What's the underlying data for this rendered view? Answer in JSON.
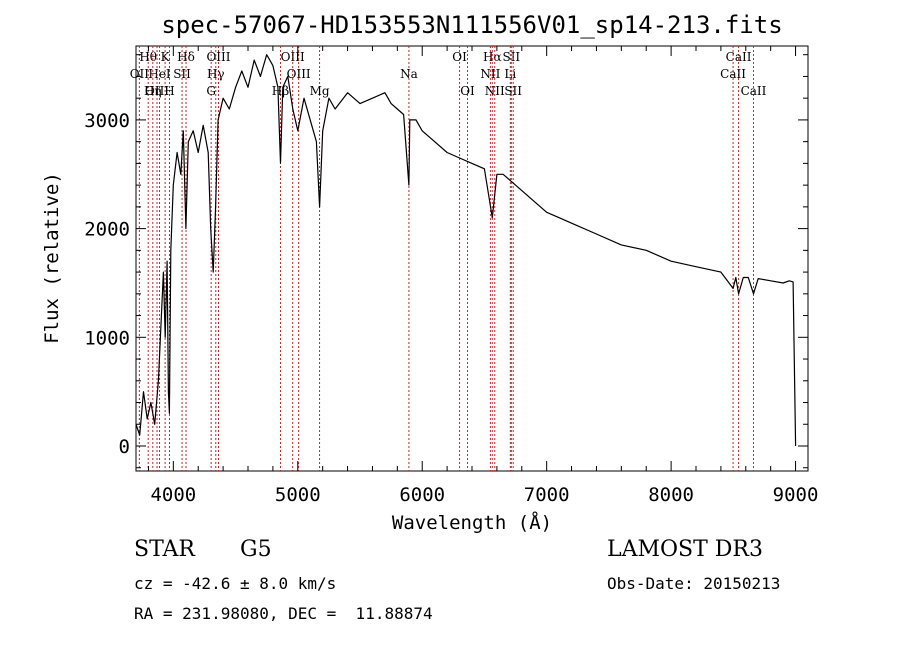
{
  "chart_data": {
    "type": "line",
    "title": "spec-57067-HD153553N111556V01_sp14-213.fits",
    "xlabel": "Wavelength (Å)",
    "ylabel": "Flux (relative)",
    "xlim": [
      3700,
      9100
    ],
    "ylim": [
      -230,
      3680
    ],
    "xticks": [
      4000,
      5000,
      6000,
      7000,
      8000,
      9000
    ],
    "yticks": [
      0,
      1000,
      2000,
      3000
    ],
    "grid": false,
    "legend": "none",
    "line_color": "#000000",
    "marker_color": "#cc2222",
    "series": [
      {
        "x": [
          3700,
          3730,
          3760,
          3790,
          3820,
          3850,
          3880,
          3900,
          3920,
          3935,
          3950,
          3960,
          3968,
          3980,
          4000,
          4030,
          4060,
          4080,
          4101,
          4120,
          4160,
          4200,
          4240,
          4280,
          4300,
          4320,
          4340,
          4360,
          4400,
          4450,
          4500,
          4550,
          4600,
          4650,
          4700,
          4750,
          4800,
          4840,
          4861,
          4880,
          4920,
          4960,
          5000,
          5050,
          5100,
          5150,
          5175,
          5200,
          5250,
          5300,
          5400,
          5500,
          5600,
          5700,
          5750,
          5800,
          5850,
          5893,
          5900,
          5950,
          6000,
          6100,
          6200,
          6300,
          6400,
          6500,
          6563,
          6600,
          6650,
          6700,
          6800,
          6900,
          7000,
          7100,
          7200,
          7400,
          7600,
          7800,
          8000,
          8200,
          8400,
          8498,
          8520,
          8542,
          8580,
          8620,
          8662,
          8700,
          8800,
          8900,
          8950,
          8980,
          9000
        ],
        "y": [
          200,
          100,
          500,
          250,
          400,
          200,
          600,
          1100,
          1600,
          1000,
          1700,
          500,
          300,
          1800,
          2400,
          2700,
          2500,
          2900,
          2000,
          2800,
          2900,
          2700,
          2950,
          2700,
          2000,
          1600,
          2200,
          3000,
          3200,
          3100,
          3300,
          3450,
          3300,
          3550,
          3400,
          3600,
          3500,
          3300,
          2600,
          3300,
          3400,
          3100,
          2900,
          3200,
          3000,
          2800,
          2200,
          2900,
          3200,
          3100,
          3250,
          3150,
          3200,
          3250,
          3150,
          3100,
          3050,
          2400,
          3000,
          3000,
          2900,
          2800,
          2700,
          2650,
          2600,
          2550,
          2100,
          2500,
          2500,
          2450,
          2350,
          2250,
          2150,
          2100,
          2050,
          1950,
          1850,
          1800,
          1700,
          1650,
          1600,
          1450,
          1550,
          1400,
          1550,
          1550,
          1400,
          1540,
          1520,
          1500,
          1520,
          1510,
          0
        ]
      }
    ],
    "spectral_lines": [
      {
        "label": "Hθ",
        "x": 3798,
        "row": 0
      },
      {
        "label": "K",
        "x": 3934,
        "row": 0
      },
      {
        "label": "Hδ",
        "x": 4102,
        "row": 0
      },
      {
        "label": "OII",
        "x": 3727,
        "row": 1
      },
      {
        "label": "HeI",
        "x": 3889,
        "row": 1
      },
      {
        "label": "SII",
        "x": 4070,
        "row": 1
      },
      {
        "label": "OIII",
        "x": 3869,
        "row": 2
      },
      {
        "label": "Hη",
        "x": 3835,
        "row": 2
      },
      {
        "label": "H",
        "x": 3969,
        "row": 2
      },
      {
        "label": "OIII",
        "x": 4363,
        "row": 0
      },
      {
        "label": "Hγ",
        "x": 4341,
        "row": 1
      },
      {
        "label": "G",
        "x": 4304,
        "row": 2
      },
      {
        "label": "OIII",
        "x": 4959,
        "row": 0
      },
      {
        "label": "OIII",
        "x": 5007,
        "row": 1
      },
      {
        "label": "Hβ",
        "x": 4861,
        "row": 2
      },
      {
        "label": "Mg",
        "x": 5175,
        "row": 2
      },
      {
        "label": "Na",
        "x": 5893,
        "row": 1
      },
      {
        "label": "OI",
        "x": 6300,
        "row": 0
      },
      {
        "label": "OI",
        "x": 6364,
        "row": 2
      },
      {
        "label": "Hα",
        "x": 6563,
        "row": 0
      },
      {
        "label": "SII",
        "x": 6716,
        "row": 0
      },
      {
        "label": "NII",
        "x": 6548,
        "row": 1
      },
      {
        "label": "Li",
        "x": 6708,
        "row": 1
      },
      {
        "label": "NII",
        "x": 6583,
        "row": 2
      },
      {
        "label": "SII",
        "x": 6731,
        "row": 2
      },
      {
        "label": "CaII",
        "x": 8542,
        "row": 0
      },
      {
        "label": "CaII",
        "x": 8498,
        "row": 1
      },
      {
        "label": "CaII",
        "x": 8662,
        "row": 2
      }
    ]
  },
  "info": {
    "object_class": "STAR",
    "subclass": "G5",
    "survey": "LAMOST DR3",
    "redshift": "cz = -42.6 ± 8.0 km/s",
    "obs_date": "Obs-Date: 20150213",
    "coords": "RA = 231.98080, DEC =  11.88874"
  }
}
